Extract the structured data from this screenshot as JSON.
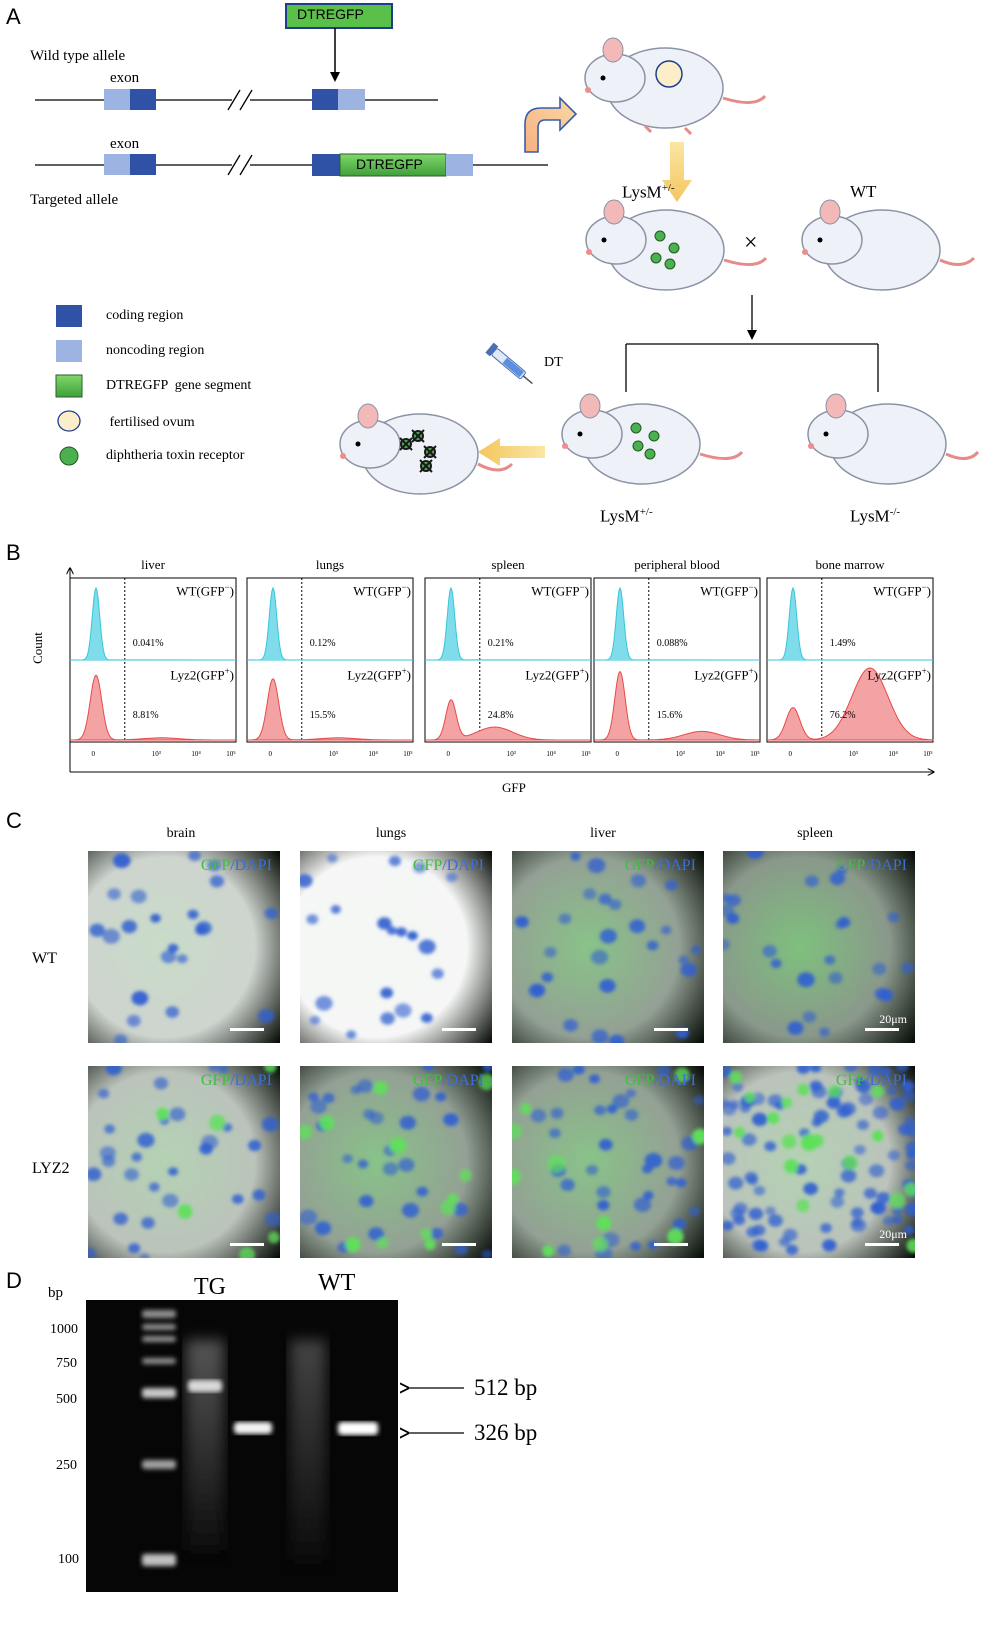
{
  "panel_a": {
    "letter": "A",
    "construct_label": "DTREGFP",
    "wild_type_allele": "Wild type allele",
    "exon_top": "exon",
    "exon_bottom": "exon",
    "targeted_allele": "Targeted allele",
    "insert_label": "DTREGFP",
    "lysm_het_top": "LysM",
    "lysm_het_top_sup": "+/-",
    "wt": "WT",
    "cross": "×",
    "dt": "DT",
    "lysm_het_bottom": "LysM",
    "lysm_het_bottom_sup": "+/-",
    "lysm_ko": "LysM",
    "lysm_ko_sup": "-/-",
    "legend": [
      {
        "icon": "coding-region-swatch",
        "text": "coding region",
        "color": "#2f52a6"
      },
      {
        "icon": "noncoding-region-swatch",
        "text": "noncoding region",
        "color": "#9db4e3"
      },
      {
        "icon": "dtregfp-swatch",
        "text": "DTREGFP  gene segment",
        "color": "#5bc049"
      },
      {
        "icon": "ovum-icon",
        "text": " fertilised ovum",
        "color": "#fbeec8"
      },
      {
        "icon": "receptor-icon",
        "text": "diphtheria toxin receptor",
        "color": "#4caf50"
      }
    ]
  },
  "panel_b": {
    "letter": "B",
    "ylabel": "Count",
    "xlabel": "GFP",
    "wt_label": "WT(GFP",
    "wt_sup": "−",
    "tg_label": "Lyz2(GFP",
    "tg_sup": "+",
    "ticks": [
      "0",
      "10³",
      "10⁴",
      "10⁵"
    ],
    "colors": {
      "wt": "#36c6dc",
      "tg": "#e8494b",
      "tg_fill": "#f3a3a3",
      "wt_fill": "#7fdcea"
    }
  },
  "chart_data": {
    "type": "area",
    "title": "",
    "xlabel": "GFP",
    "ylabel": "Count",
    "panels": [
      {
        "tissue": "liver",
        "wt_percent": "0.041%",
        "tg_percent": "8.81%"
      },
      {
        "tissue": "lungs",
        "wt_percent": "0.12%",
        "tg_percent": "15.5%"
      },
      {
        "tissue": "spleen",
        "wt_percent": "0.21%",
        "tg_percent": "24.8%"
      },
      {
        "tissue": "peripheral blood",
        "wt_percent": "0.088%",
        "tg_percent": "15.6%"
      },
      {
        "tissue": "bone marrow",
        "wt_percent": "1.49%",
        "tg_percent": "76.2%"
      }
    ],
    "series": [
      {
        "name": "WT(GFP−)",
        "color": "#36c6dc"
      },
      {
        "name": "Lyz2(GFP+)",
        "color": "#e8494b"
      }
    ]
  },
  "panel_c": {
    "letter": "C",
    "columns": [
      "brain",
      "lungs",
      "liver",
      "spleen"
    ],
    "rows": [
      "WT",
      "LYZ2"
    ],
    "stain_green": "GFP",
    "stain_sep": "/",
    "stain_blue": "DAPI",
    "scale": "20μm"
  },
  "panel_d": {
    "letter": "D",
    "unit": "bp",
    "ladder": [
      "1000",
      "750",
      "500",
      "250",
      "100"
    ],
    "lanes": [
      "TG",
      "WT"
    ],
    "band_512": "512 bp",
    "band_326": "326 bp"
  }
}
